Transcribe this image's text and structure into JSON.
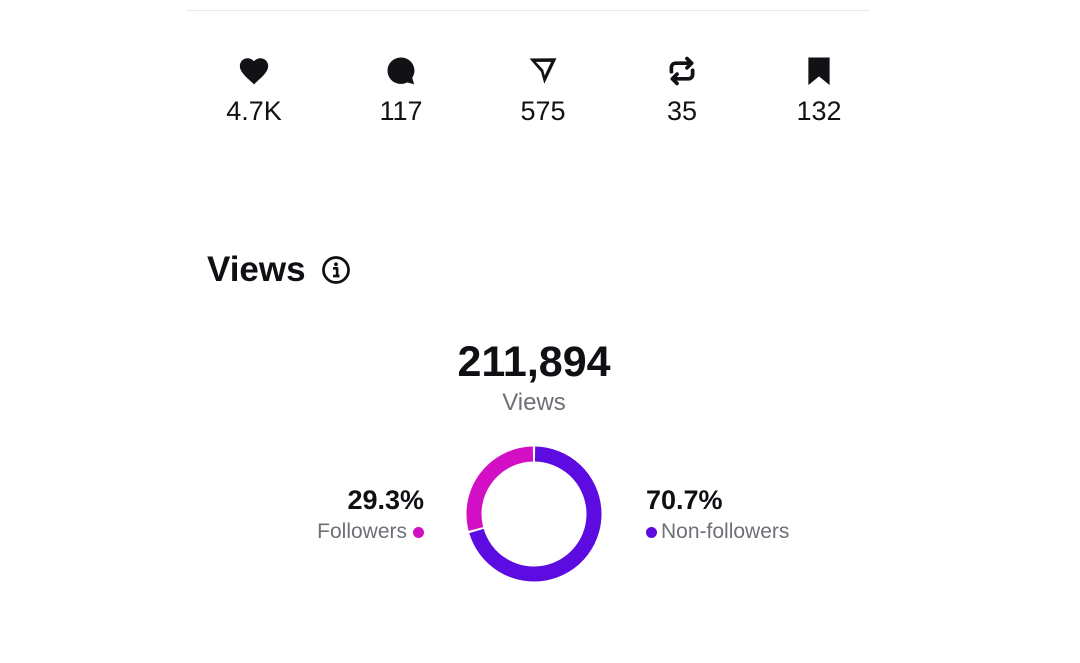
{
  "engagement": {
    "likes": {
      "icon": "heart-icon",
      "value": "4.7K"
    },
    "comments": {
      "icon": "comment-icon",
      "value": "117"
    },
    "shares": {
      "icon": "send-icon",
      "value": "575"
    },
    "reposts": {
      "icon": "repost-icon",
      "value": "35"
    },
    "saves": {
      "icon": "bookmark-icon",
      "value": "132"
    }
  },
  "views_section": {
    "title": "Views",
    "info_icon": "info-icon",
    "total_value": "211,894",
    "total_label": "Views",
    "followers": {
      "percent": "29.3%",
      "label": "Followers",
      "share": 0.293,
      "color": "#d20fc4"
    },
    "non_followers": {
      "percent": "70.7%",
      "label": "Non-followers",
      "share": 0.707,
      "color": "#5c0be0"
    }
  },
  "colors": {
    "text": "#0f0f14",
    "muted_text": "#6f7077",
    "divider": "#e9e9ec"
  }
}
